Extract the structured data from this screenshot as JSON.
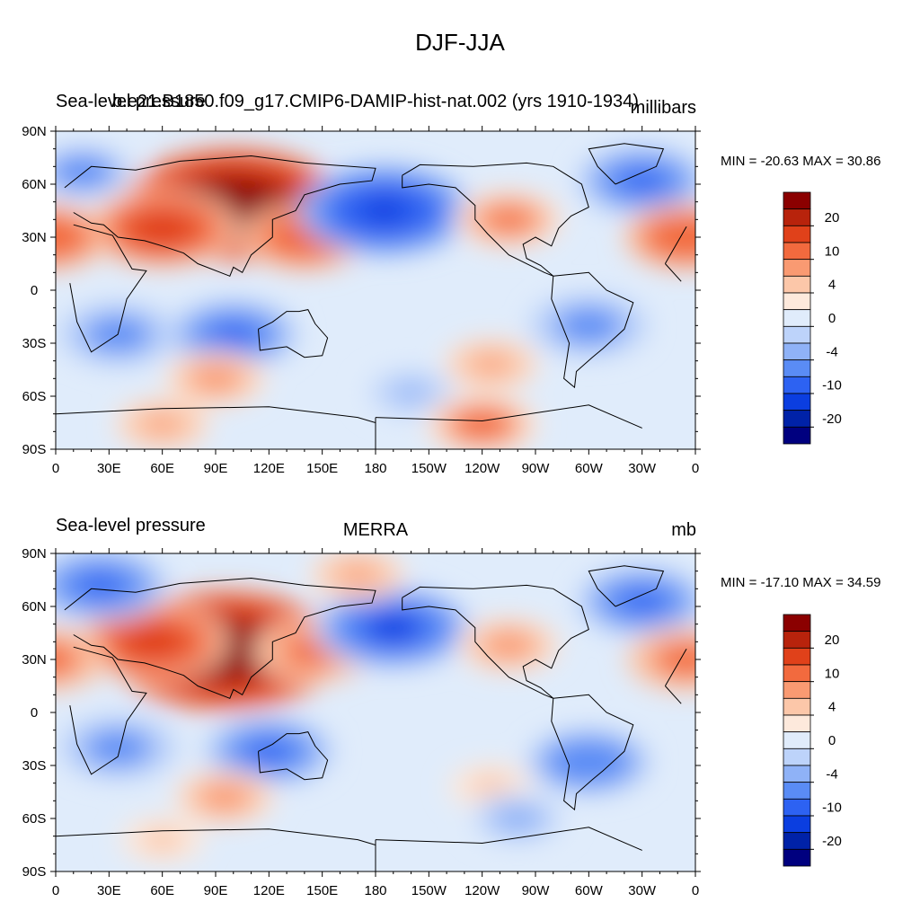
{
  "figure": {
    "title": "DJF-JJA"
  },
  "panels": [
    {
      "left_label": "Sea-level pressure",
      "center_label": "b.e21.B1850.f09_g17.CMIP6-DAMIP-hist-nat.002 (yrs 1910-1934)",
      "right_label": "millibars",
      "minmax": "MIN = -20.63 MAX =  30.86"
    },
    {
      "left_label": "Sea-level pressure",
      "center_label": "MERRA",
      "right_label": "mb",
      "minmax": "MIN = -17.10 MAX =  34.59"
    }
  ],
  "colors": {
    "coastline": "#000000",
    "levels": [
      "#00007f",
      "#0022a8",
      "#0b3ee0",
      "#2d62f2",
      "#5a8cf5",
      "#8fb2f7",
      "#bdd3fa",
      "#e0ecfb",
      "#fde9dc",
      "#fcc7a9",
      "#f99a72",
      "#f26a3e",
      "#e0411a",
      "#b8230c",
      "#8b0000"
    ]
  },
  "chart_data": [
    {
      "type": "heatmap",
      "title": "DJF-JJA",
      "subtitle": "b.e21.B1850.f09_g17.CMIP6-DAMIP-hist-nat.002 (yrs 1910-1934)",
      "variable": "Sea-level pressure",
      "units": "millibars",
      "x_ticks": [
        "0",
        "30E",
        "60E",
        "90E",
        "120E",
        "150E",
        "180",
        "150W",
        "120W",
        "90W",
        "60W",
        "30W",
        "0"
      ],
      "y_ticks": [
        "90N",
        "60N",
        "30N",
        "0",
        "30S",
        "60S",
        "90S"
      ],
      "xlim": [
        0,
        360
      ],
      "ylim": [
        -90,
        90
      ],
      "colorbar_labels": [
        "20",
        "10",
        "4",
        "0",
        "-4",
        "-10",
        "-20"
      ],
      "min": -20.63,
      "max": 30.86,
      "features": [
        {
          "lon": 100,
          "lat": 48,
          "value": 26
        },
        {
          "lon": 60,
          "lat": 35,
          "value": 14
        },
        {
          "lon": 140,
          "lat": 30,
          "value": 10
        },
        {
          "lon": 185,
          "lat": 45,
          "value": -18
        },
        {
          "lon": 330,
          "lat": 62,
          "value": -11
        },
        {
          "lon": 255,
          "lat": 40,
          "value": 7
        },
        {
          "lon": 355,
          "lat": 30,
          "value": 10
        },
        {
          "lon": 100,
          "lat": -25,
          "value": -11
        },
        {
          "lon": 35,
          "lat": -25,
          "value": -9
        },
        {
          "lon": 300,
          "lat": -20,
          "value": -9
        },
        {
          "lon": 90,
          "lat": -50,
          "value": 6
        },
        {
          "lon": 245,
          "lat": -42,
          "value": 5
        },
        {
          "lon": 200,
          "lat": -58,
          "value": -5
        },
        {
          "lon": 240,
          "lat": -76,
          "value": 8
        },
        {
          "lon": 60,
          "lat": -76,
          "value": 5
        },
        {
          "lon": 15,
          "lat": 67,
          "value": -8
        }
      ]
    },
    {
      "type": "heatmap",
      "title": "DJF-JJA",
      "subtitle": "MERRA",
      "variable": "Sea-level pressure",
      "units": "mb",
      "x_ticks": [
        "0",
        "30E",
        "60E",
        "90E",
        "120E",
        "150E",
        "180",
        "150W",
        "120W",
        "90W",
        "60W",
        "30W",
        "0"
      ],
      "y_ticks": [
        "90N",
        "60N",
        "30N",
        "0",
        "30S",
        "60S",
        "90S"
      ],
      "xlim": [
        0,
        360
      ],
      "ylim": [
        -90,
        90
      ],
      "colorbar_labels": [
        "20",
        "10",
        "4",
        "0",
        "-4",
        "-10",
        "-20"
      ],
      "min": -17.1,
      "max": 34.59,
      "features": [
        {
          "lon": 95,
          "lat": 35,
          "value": 28
        },
        {
          "lon": 55,
          "lat": 40,
          "value": 14
        },
        {
          "lon": 145,
          "lat": 35,
          "value": 9
        },
        {
          "lon": 190,
          "lat": 48,
          "value": -16
        },
        {
          "lon": 330,
          "lat": 63,
          "value": -11
        },
        {
          "lon": 255,
          "lat": 38,
          "value": 6
        },
        {
          "lon": 355,
          "lat": 30,
          "value": 9
        },
        {
          "lon": 25,
          "lat": 72,
          "value": -12
        },
        {
          "lon": 170,
          "lat": 78,
          "value": 5
        },
        {
          "lon": 120,
          "lat": -22,
          "value": -11
        },
        {
          "lon": 35,
          "lat": -20,
          "value": -9
        },
        {
          "lon": 300,
          "lat": -28,
          "value": -10
        },
        {
          "lon": 95,
          "lat": -48,
          "value": 6
        },
        {
          "lon": 245,
          "lat": -42,
          "value": 3
        },
        {
          "lon": 260,
          "lat": -60,
          "value": -6
        },
        {
          "lon": 60,
          "lat": -72,
          "value": 3
        }
      ]
    }
  ]
}
